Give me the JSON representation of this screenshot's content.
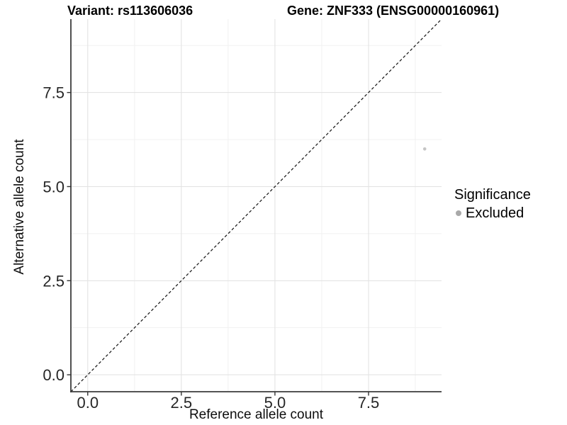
{
  "header": {
    "variant_title": "Variant: rs113606036",
    "gene_title": "Gene: ZNF333 (ENSG00000160961)"
  },
  "chart_data": {
    "type": "scatter",
    "xlabel": "Reference allele count",
    "ylabel": "Alternative allele count",
    "xlim": [
      -0.45,
      9.45
    ],
    "ylim": [
      -0.45,
      9.45
    ],
    "x_major_ticks": [
      0.0,
      2.5,
      5.0,
      7.5
    ],
    "y_major_ticks": [
      0.0,
      2.5,
      5.0,
      7.5
    ],
    "x_minor_ticks": [
      1.25,
      3.75,
      6.25,
      8.75
    ],
    "y_minor_ticks": [
      1.25,
      3.75,
      6.25,
      8.75
    ],
    "x_tick_labels": [
      "0.0",
      "2.5",
      "5.0",
      "7.5"
    ],
    "y_tick_labels": [
      "0.0",
      "2.5",
      "5.0",
      "7.5"
    ],
    "grid": true,
    "identity_line": {
      "slope": 1,
      "intercept": 0,
      "style": "dashed",
      "color": "#1a1a1a"
    },
    "series": [
      {
        "name": "Excluded",
        "point_color": "#c5c5c5",
        "points": [
          {
            "x": 9,
            "y": 6
          }
        ]
      }
    ],
    "legend": {
      "title": "Significance",
      "position": "right",
      "items": [
        {
          "label": "Excluded",
          "swatch_color": "#a9a9a9"
        }
      ]
    },
    "style_colors": {
      "axis_line": "#3c3c3c",
      "tick_mark": "#333333",
      "tick_label": "#262626",
      "grid_major": "#e3e3e3",
      "grid_minor": "#f1f1f1",
      "background": "#ffffff"
    }
  }
}
